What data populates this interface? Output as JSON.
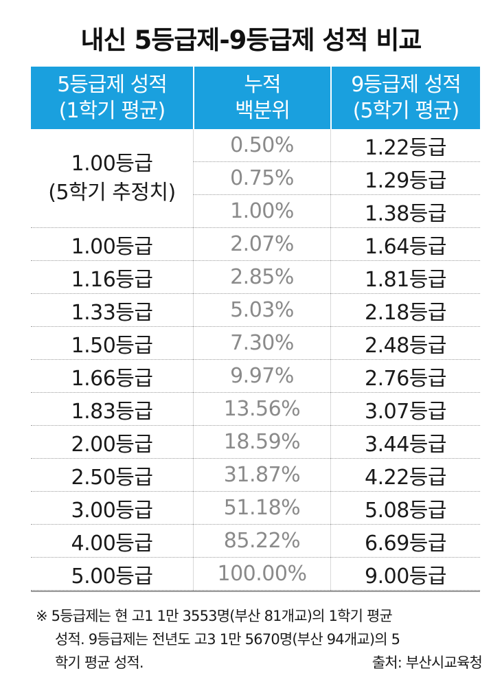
{
  "title": "내신 5등급제-9등급제 성적 비교",
  "header": {
    "col1_line1": "5등급제 성적",
    "col1_line2": "(1학기 평균)",
    "col2_line1": "누적",
    "col2_line2": "백분위",
    "col3_line1": "9등급제 성적",
    "col3_line2": "(5학기 평균)"
  },
  "colors": {
    "header_bg": "#1aa0de",
    "percentile_text": "#8a8a8a"
  },
  "merged_row": {
    "grade5_line1": "1.00등급",
    "grade5_line2": "(5학기 추정치)",
    "sub_rows": [
      {
        "percentile": "0.50%",
        "grade9": "1.22등급"
      },
      {
        "percentile": "0.75%",
        "grade9": "1.29등급"
      },
      {
        "percentile": "1.00%",
        "grade9": "1.38등급"
      }
    ]
  },
  "rows": [
    {
      "grade5": "1.00등급",
      "percentile": "2.07%",
      "grade9": "1.64등급"
    },
    {
      "grade5": "1.16등급",
      "percentile": "2.85%",
      "grade9": "1.81등급"
    },
    {
      "grade5": "1.33등급",
      "percentile": "5.03%",
      "grade9": "2.18등급"
    },
    {
      "grade5": "1.50등급",
      "percentile": "7.30%",
      "grade9": "2.48등급"
    },
    {
      "grade5": "1.66등급",
      "percentile": "9.97%",
      "grade9": "2.76등급"
    },
    {
      "grade5": "1.83등급",
      "percentile": "13.56%",
      "grade9": "3.07등급"
    },
    {
      "grade5": "2.00등급",
      "percentile": "18.59%",
      "grade9": "3.44등급"
    },
    {
      "grade5": "2.50등급",
      "percentile": "31.87%",
      "grade9": "4.22등급"
    },
    {
      "grade5": "3.00등급",
      "percentile": "51.18%",
      "grade9": "5.08등급"
    },
    {
      "grade5": "4.00등급",
      "percentile": "85.22%",
      "grade9": "6.69등급"
    },
    {
      "grade5": "5.00등급",
      "percentile": "100.00%",
      "grade9": "9.00등급"
    }
  ],
  "note": {
    "line1": "※ 5등급제는 현 고1 1만 3553명(부산 81개교)의 1학기 평균",
    "line2": "성적. 9등급제는 전년도 고3 1만 5670명(부산 94개교)의 5",
    "line3": "학기 평균 성적.",
    "source": "출처: 부산시교육청"
  }
}
